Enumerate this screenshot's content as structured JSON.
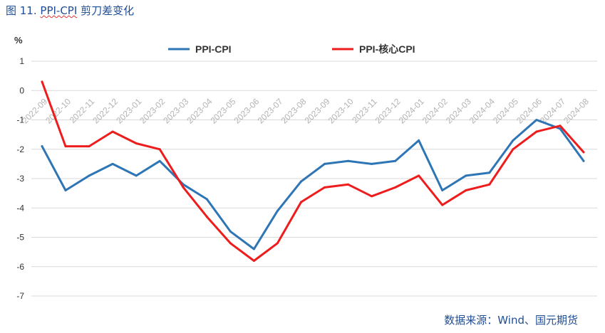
{
  "figure": {
    "number": "图 11.",
    "title_ppi": "PPI-CPI",
    "title_rest": "剪刀差变化",
    "source": "数据来源：Wind、国元期货"
  },
  "chart_data": {
    "type": "line",
    "ylabel": "%",
    "ylim": [
      -7,
      1
    ],
    "yticks": [
      1,
      0,
      -1,
      -2,
      -3,
      -4,
      -5,
      -6,
      -7
    ],
    "grid": "horizontal",
    "legend": "top-center",
    "categories": [
      "2022-09",
      "2022-10",
      "2022-11",
      "2022-12",
      "2023-01",
      "2023-02",
      "2023-03",
      "2023-04",
      "2023-05",
      "2023-06",
      "2023-07",
      "2023-08",
      "2023-09",
      "2023-10",
      "2023-11",
      "2023-12",
      "2024-01",
      "2024-02",
      "2024-03",
      "2024-04",
      "2024-05",
      "2024-06",
      "2024-07",
      "2024-08"
    ],
    "series": [
      {
        "name": "PPI-CPI",
        "color": "#2e75b6",
        "values": [
          -1.9,
          -3.4,
          -2.9,
          -2.5,
          -2.9,
          -2.4,
          -3.2,
          -3.7,
          -4.8,
          -5.4,
          -4.1,
          -3.1,
          -2.5,
          -2.4,
          -2.5,
          -2.4,
          -1.7,
          -3.4,
          -2.9,
          -2.8,
          -1.7,
          -1.0,
          -1.3,
          -2.4
        ]
      },
      {
        "name": "PPI-核心CPI",
        "color": "#ee1c1c",
        "values": [
          0.3,
          -1.9,
          -1.9,
          -1.4,
          -1.8,
          -2.0,
          -3.3,
          -4.3,
          -5.2,
          -5.8,
          -5.2,
          -3.8,
          -3.3,
          -3.2,
          -3.6,
          -3.3,
          -2.9,
          -3.9,
          -3.4,
          -3.2,
          -2.0,
          -1.4,
          -1.2,
          -2.1
        ]
      }
    ]
  }
}
